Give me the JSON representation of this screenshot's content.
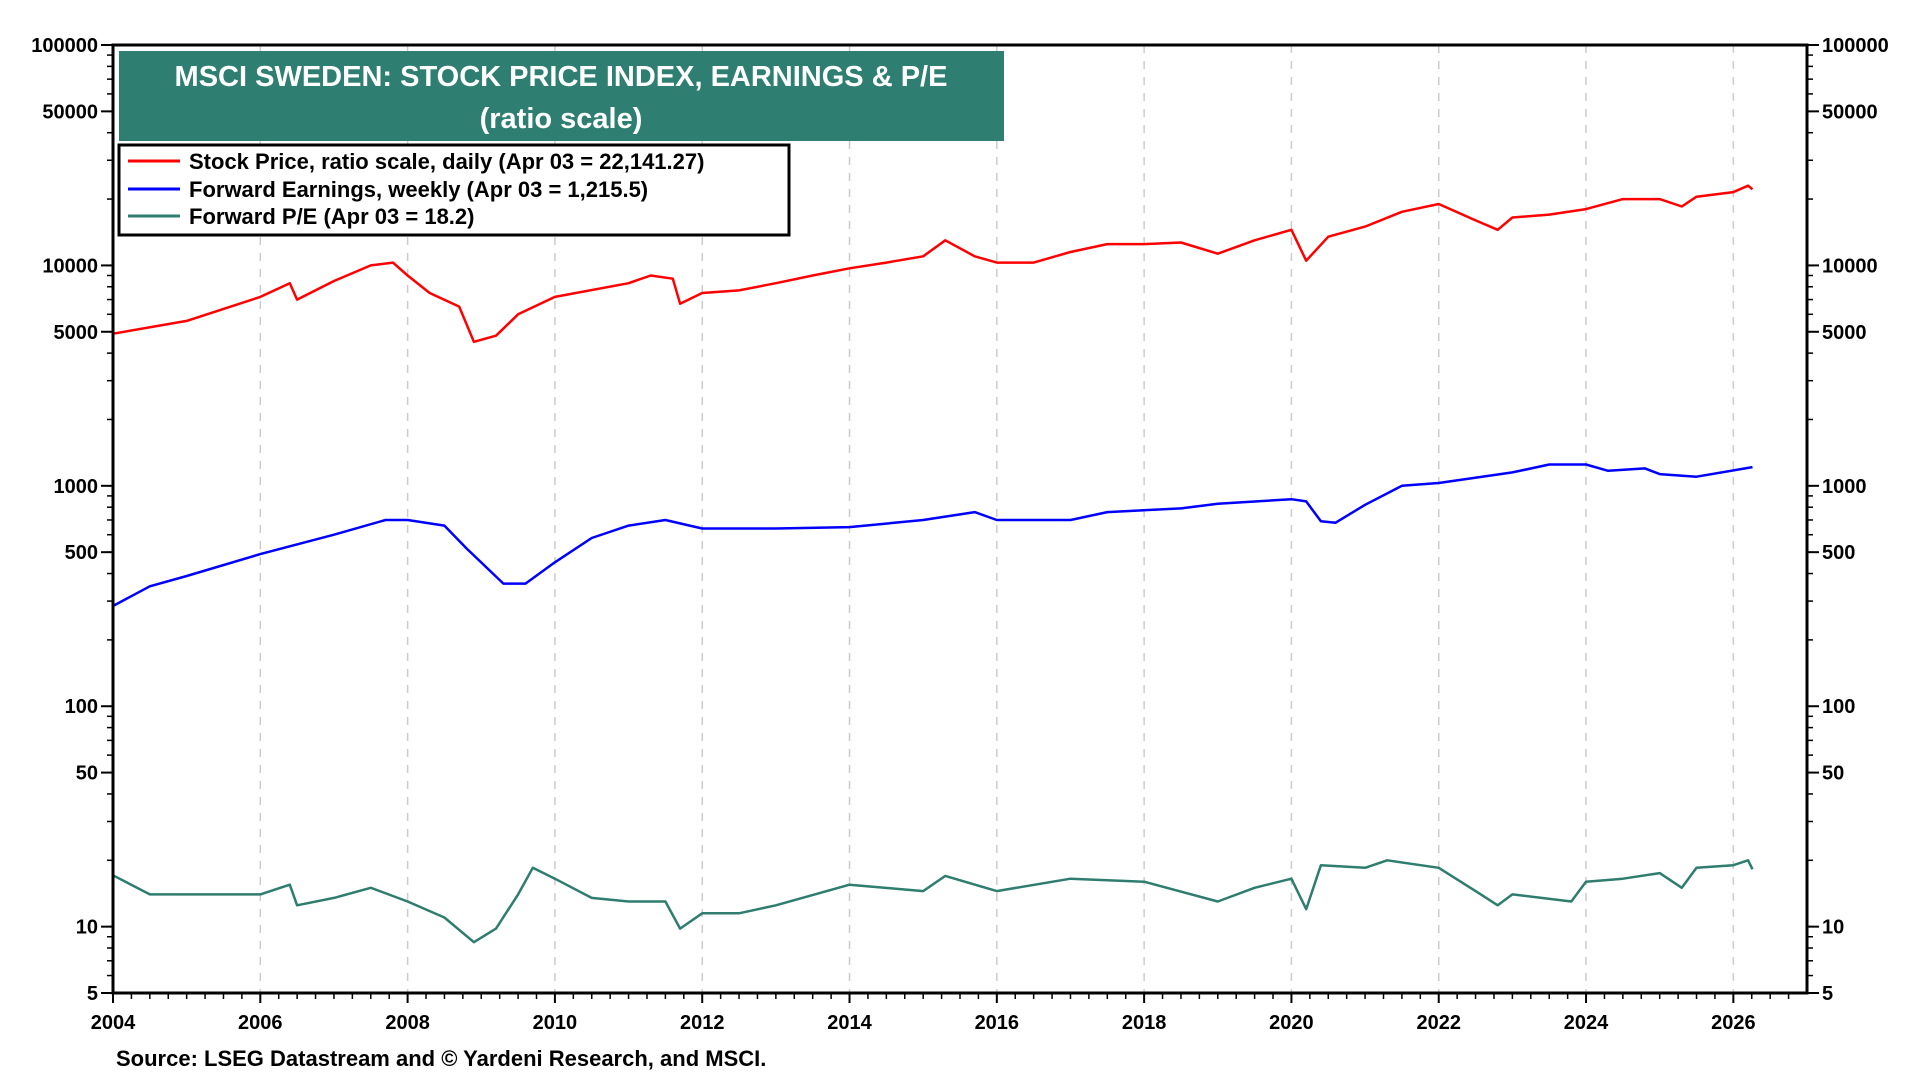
{
  "chart_data": {
    "type": "line",
    "title": "MSCI SWEDEN: STOCK PRICE INDEX, EARNINGS & P/E",
    "subtitle": "(ratio scale)",
    "source": "Source: LSEG Datastream and © Yardeni Research, and MSCI.",
    "y_scale": "log",
    "ylim": [
      5,
      100000
    ],
    "xlim": [
      2004,
      2027
    ],
    "grid": "vertical dashed at x ticks",
    "legend_placement": "top-left",
    "x_ticks": [
      "2004",
      "2006",
      "2008",
      "2010",
      "2012",
      "2014",
      "2016",
      "2018",
      "2020",
      "2022",
      "2024",
      "2026"
    ],
    "y_ticks": [
      "100000",
      "50000",
      "10000",
      "5000",
      "1000",
      "500",
      "100",
      "50",
      "10",
      "5"
    ],
    "series": [
      {
        "name": "Stock Price, ratio scale, daily (Apr 03 = 22,141.27)",
        "color": "#ff0000",
        "points": [
          [
            2004.0,
            4900
          ],
          [
            2005.0,
            5600
          ],
          [
            2006.0,
            7200
          ],
          [
            2006.4,
            8300
          ],
          [
            2006.5,
            7000
          ],
          [
            2007.0,
            8500
          ],
          [
            2007.5,
            10000
          ],
          [
            2007.8,
            10300
          ],
          [
            2008.0,
            9000
          ],
          [
            2008.3,
            7500
          ],
          [
            2008.7,
            6500
          ],
          [
            2008.9,
            4500
          ],
          [
            2009.2,
            4800
          ],
          [
            2009.5,
            6000
          ],
          [
            2010.0,
            7200
          ],
          [
            2011.0,
            8300
          ],
          [
            2011.3,
            9000
          ],
          [
            2011.6,
            8700
          ],
          [
            2011.7,
            6700
          ],
          [
            2012.0,
            7500
          ],
          [
            2012.5,
            7700
          ],
          [
            2013.0,
            8300
          ],
          [
            2013.5,
            9000
          ],
          [
            2014.0,
            9700
          ],
          [
            2014.5,
            10300
          ],
          [
            2015.0,
            11000
          ],
          [
            2015.3,
            13000
          ],
          [
            2015.7,
            11000
          ],
          [
            2016.0,
            10300
          ],
          [
            2016.5,
            10300
          ],
          [
            2017.0,
            11500
          ],
          [
            2017.5,
            12500
          ],
          [
            2018.0,
            12500
          ],
          [
            2018.5,
            12700
          ],
          [
            2019.0,
            11300
          ],
          [
            2019.5,
            13000
          ],
          [
            2020.0,
            14500
          ],
          [
            2020.2,
            10500
          ],
          [
            2020.5,
            13500
          ],
          [
            2021.0,
            15000
          ],
          [
            2021.5,
            17500
          ],
          [
            2022.0,
            19000
          ],
          [
            2022.5,
            16000
          ],
          [
            2022.8,
            14500
          ],
          [
            2023.0,
            16500
          ],
          [
            2023.5,
            17000
          ],
          [
            2024.0,
            18000
          ],
          [
            2024.5,
            20000
          ],
          [
            2025.0,
            20000
          ],
          [
            2025.3,
            18500
          ],
          [
            2025.5,
            20500
          ],
          [
            2026.0,
            21500
          ],
          [
            2026.2,
            23000
          ],
          [
            2026.26,
            22141.27
          ]
        ]
      },
      {
        "name": "Forward Earnings, weekly (Apr 03 = 1,215.5)",
        "color": "#0000ff",
        "points": [
          [
            2004.0,
            285
          ],
          [
            2004.5,
            350
          ],
          [
            2005.0,
            390
          ],
          [
            2006.0,
            490
          ],
          [
            2007.0,
            600
          ],
          [
            2007.7,
            700
          ],
          [
            2008.0,
            700
          ],
          [
            2008.5,
            660
          ],
          [
            2008.8,
            520
          ],
          [
            2009.3,
            360
          ],
          [
            2009.6,
            360
          ],
          [
            2010.0,
            450
          ],
          [
            2010.5,
            580
          ],
          [
            2011.0,
            660
          ],
          [
            2011.5,
            700
          ],
          [
            2012.0,
            640
          ],
          [
            2013.0,
            640
          ],
          [
            2014.0,
            650
          ],
          [
            2015.0,
            700
          ],
          [
            2015.7,
            760
          ],
          [
            2016.0,
            700
          ],
          [
            2017.0,
            700
          ],
          [
            2017.5,
            760
          ],
          [
            2018.5,
            790
          ],
          [
            2019.0,
            830
          ],
          [
            2020.0,
            870
          ],
          [
            2020.2,
            850
          ],
          [
            2020.4,
            690
          ],
          [
            2020.6,
            680
          ],
          [
            2021.0,
            820
          ],
          [
            2021.5,
            1000
          ],
          [
            2022.0,
            1030
          ],
          [
            2023.0,
            1150
          ],
          [
            2023.5,
            1250
          ],
          [
            2024.0,
            1250
          ],
          [
            2024.3,
            1170
          ],
          [
            2024.8,
            1200
          ],
          [
            2025.0,
            1130
          ],
          [
            2025.5,
            1100
          ],
          [
            2026.26,
            1215.5
          ]
        ]
      },
      {
        "name": "Forward P/E (Apr 03 = 18.2)",
        "color": "#2e7d6e",
        "points": [
          [
            2004.0,
            17.1
          ],
          [
            2004.5,
            14
          ],
          [
            2005.0,
            14
          ],
          [
            2006.0,
            14
          ],
          [
            2006.4,
            15.5
          ],
          [
            2006.5,
            12.5
          ],
          [
            2007.0,
            13.5
          ],
          [
            2007.5,
            15
          ],
          [
            2008.0,
            13
          ],
          [
            2008.5,
            11
          ],
          [
            2008.9,
            8.5
          ],
          [
            2009.2,
            9.8
          ],
          [
            2009.5,
            14
          ],
          [
            2009.7,
            18.5
          ],
          [
            2010.0,
            16.5
          ],
          [
            2010.5,
            13.5
          ],
          [
            2011.0,
            13
          ],
          [
            2011.5,
            13
          ],
          [
            2011.7,
            9.8
          ],
          [
            2012.0,
            11.5
          ],
          [
            2012.5,
            11.5
          ],
          [
            2013.0,
            12.5
          ],
          [
            2014.0,
            15.5
          ],
          [
            2015.0,
            14.5
          ],
          [
            2015.3,
            17
          ],
          [
            2016.0,
            14.5
          ],
          [
            2017.0,
            16.5
          ],
          [
            2018.0,
            16
          ],
          [
            2019.0,
            13
          ],
          [
            2019.5,
            15
          ],
          [
            2020.0,
            16.5
          ],
          [
            2020.2,
            12
          ],
          [
            2020.4,
            19
          ],
          [
            2021.0,
            18.5
          ],
          [
            2021.3,
            20
          ],
          [
            2022.0,
            18.5
          ],
          [
            2022.5,
            14.5
          ],
          [
            2022.8,
            12.5
          ],
          [
            2023.0,
            14
          ],
          [
            2023.8,
            13
          ],
          [
            2024.0,
            16
          ],
          [
            2024.5,
            16.5
          ],
          [
            2025.0,
            17.5
          ],
          [
            2025.3,
            15
          ],
          [
            2025.5,
            18.5
          ],
          [
            2026.0,
            19
          ],
          [
            2026.2,
            20
          ],
          [
            2026.26,
            18.2
          ]
        ]
      }
    ]
  },
  "colors": {
    "title_bg": "#2e7f72",
    "title_text": "#ffffff",
    "grid": "#cccccc"
  }
}
